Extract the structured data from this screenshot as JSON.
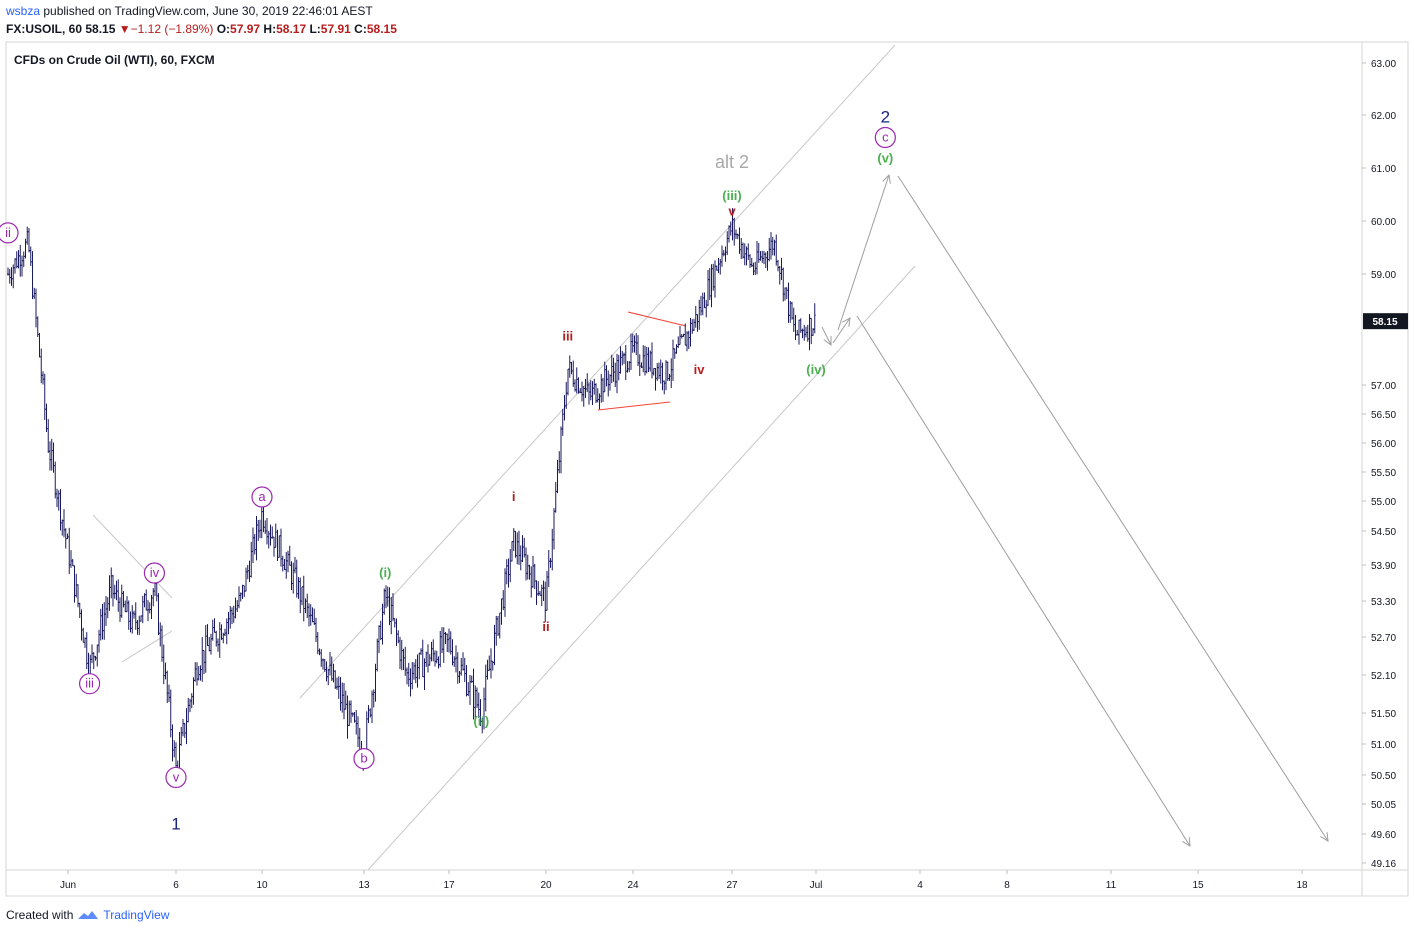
{
  "header": {
    "author": "wsbza",
    "published_text": "published on TradingView.com, June 30, 2019 22:46:01 AEST",
    "symbol_line": "FX:USOIL, 60",
    "last": "58.15",
    "change_arrow": "▼",
    "change": "−1.12 (−1.89%)",
    "open_label": "O:",
    "open": "57.97",
    "high_label": "H:",
    "high": "58.17",
    "low_label": "L:",
    "low": "57.91",
    "close_label": "C:",
    "close": "58.15"
  },
  "footer": {
    "created_with": "Created with",
    "brand": "TradingView"
  },
  "chart_data": {
    "type": "line",
    "title": "CFDs on Crude Oil (WTI), 60, FXCM",
    "style": "ohlc-bars",
    "x_ticks": [
      "Jun",
      "6",
      "10",
      "13",
      "17",
      "20",
      "24",
      "27",
      "Jul",
      "4",
      "8",
      "11",
      "15",
      "18"
    ],
    "y_ticks": [
      "63.00",
      "62.00",
      "61.00",
      "60.00",
      "59.00",
      "57.00",
      "56.50",
      "56.00",
      "55.50",
      "55.00",
      "54.50",
      "53.90",
      "53.30",
      "52.70",
      "52.10",
      "51.50",
      "51.00",
      "50.50",
      "50.05",
      "49.60",
      "49.16"
    ],
    "ylim": [
      49.16,
      63.0
    ],
    "current_price": "58.15",
    "price_path": [
      {
        "date": "2019-05-29",
        "price": 59.0
      },
      {
        "date": "2019-05-30",
        "price": 59.6
      },
      {
        "date": "2019-05-31",
        "price": 56.0
      },
      {
        "date": "2019-06-02",
        "price": 52.2
      },
      {
        "date": "2019-06-03",
        "price": 53.5
      },
      {
        "date": "2019-06-04",
        "price": 52.9
      },
      {
        "date": "2019-06-05",
        "price": 53.5
      },
      {
        "date": "2019-06-06",
        "price": 50.6
      },
      {
        "date": "2019-06-07",
        "price": 52.3
      },
      {
        "date": "2019-06-09",
        "price": 53.3
      },
      {
        "date": "2019-06-10",
        "price": 54.8
      },
      {
        "date": "2019-06-11",
        "price": 53.6
      },
      {
        "date": "2019-06-12",
        "price": 52.1
      },
      {
        "date": "2019-06-13",
        "price": 50.9
      },
      {
        "date": "2019-06-14",
        "price": 53.4
      },
      {
        "date": "2019-06-15",
        "price": 52.1
      },
      {
        "date": "2019-06-17",
        "price": 52.6
      },
      {
        "date": "2019-06-18",
        "price": 51.5
      },
      {
        "date": "2019-06-19",
        "price": 54.3
      },
      {
        "date": "2019-06-20",
        "price": 53.3
      },
      {
        "date": "2019-06-21",
        "price": 57.3
      },
      {
        "date": "2019-06-22",
        "price": 56.8
      },
      {
        "date": "2019-06-24",
        "price": 57.6
      },
      {
        "date": "2019-06-25",
        "price": 57.2
      },
      {
        "date": "2019-06-26",
        "price": 58.3
      },
      {
        "date": "2019-06-27",
        "price": 59.9
      },
      {
        "date": "2019-06-28",
        "price": 59.1
      },
      {
        "date": "2019-06-29",
        "price": 59.6
      },
      {
        "date": "2019-06-30",
        "price": 57.9
      },
      {
        "date": "2019-07-01",
        "price": 58.15
      }
    ],
    "wave_labels": [
      {
        "text": "ii",
        "date": "2019-05-29",
        "price": 59.7,
        "color": "#9c27b0",
        "circled": true
      },
      {
        "text": "iii",
        "date": "2019-06-02",
        "price": 51.9,
        "color": "#9c27b0",
        "circled": true
      },
      {
        "text": "iv",
        "date": "2019-06-05",
        "price": 53.7,
        "color": "#9c27b0",
        "circled": true
      },
      {
        "text": "v",
        "date": "2019-06-06",
        "price": 50.4,
        "color": "#9c27b0",
        "circled": true
      },
      {
        "text": "1",
        "date": "2019-06-06",
        "price": 49.7,
        "color": "#1a237e",
        "circled": false
      },
      {
        "text": "a",
        "date": "2019-06-10",
        "price": 55.0,
        "color": "#9c27b0",
        "circled": true
      },
      {
        "text": "b",
        "date": "2019-06-13",
        "price": 50.7,
        "color": "#9c27b0",
        "circled": true
      },
      {
        "text": "(i)",
        "date": "2019-06-14",
        "price": 53.7,
        "color": "#4caf50",
        "circled": false
      },
      {
        "text": "(ii)",
        "date": "2019-06-18",
        "price": 51.3,
        "color": "#4caf50",
        "circled": false
      },
      {
        "text": "i",
        "date": "2019-06-19",
        "price": 55.0,
        "color": "#b71c1c",
        "circled": false
      },
      {
        "text": "ii",
        "date": "2019-06-20",
        "price": 52.8,
        "color": "#b71c1c",
        "circled": false
      },
      {
        "text": "iii",
        "date": "2019-06-21",
        "price": 57.8,
        "color": "#b71c1c",
        "circled": false
      },
      {
        "text": "iv",
        "date": "2019-06-26",
        "price": 57.2,
        "color": "#b71c1c",
        "circled": false
      },
      {
        "text": "v",
        "date": "2019-06-27",
        "price": 60.1,
        "color": "#b71c1c",
        "circled": false
      },
      {
        "text": "(iii)",
        "date": "2019-06-27",
        "price": 60.4,
        "color": "#4caf50",
        "circled": false
      },
      {
        "text": "alt 2",
        "date": "2019-06-27",
        "price": 61.0,
        "color": "#a8a8a8",
        "circled": false
      },
      {
        "text": "(iv)",
        "date": "2019-07-01",
        "price": 57.2,
        "color": "#4caf50",
        "circled": false
      },
      {
        "text": "(v)",
        "date": "2019-07-03",
        "price": 61.1,
        "color": "#4caf50",
        "circled": false
      },
      {
        "text": "c",
        "date": "2019-07-03",
        "price": 61.5,
        "color": "#9c27b0",
        "circled": true
      },
      {
        "text": "2",
        "date": "2019-07-03",
        "price": 61.9,
        "color": "#1a237e",
        "circled": false
      }
    ],
    "colors": {
      "bars": "#1a1a5e",
      "channel": "#c8c8c8",
      "triangle": "#f44336",
      "projection": "#9e9e9e",
      "axis_text": "#131722",
      "price_tag": "#131722"
    }
  }
}
